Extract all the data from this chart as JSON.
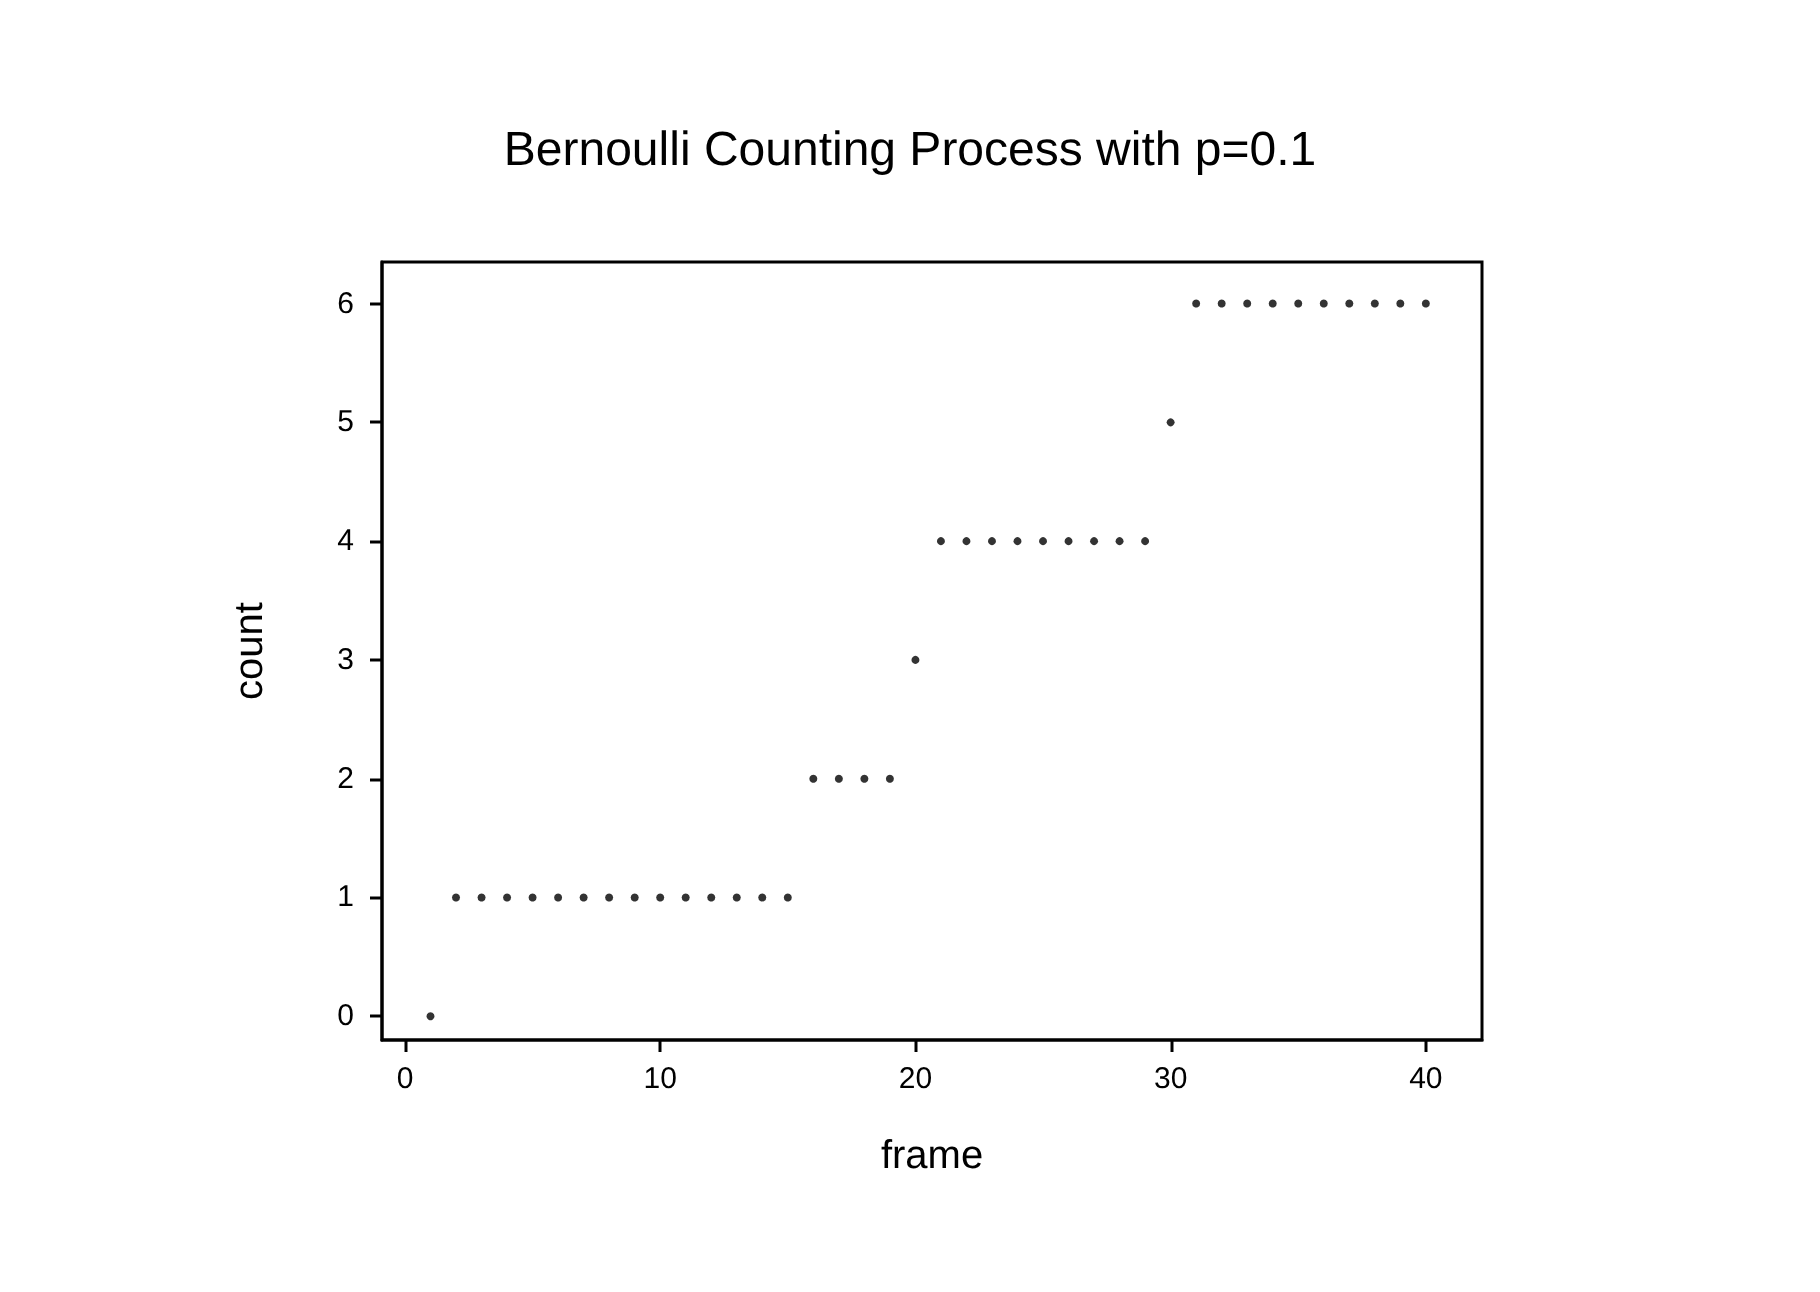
{
  "chart_data": {
    "type": "scatter",
    "title": "Bernoulli Counting Process with p=0.1",
    "xlabel": "frame",
    "ylabel": "count",
    "x": [
      1,
      2,
      3,
      4,
      5,
      6,
      7,
      8,
      9,
      10,
      11,
      12,
      13,
      14,
      15,
      16,
      17,
      18,
      19,
      20,
      21,
      22,
      23,
      24,
      25,
      26,
      27,
      28,
      29,
      30,
      31,
      32,
      33,
      34,
      35,
      36,
      37,
      38,
      39,
      40
    ],
    "values": [
      0,
      1,
      1,
      1,
      1,
      1,
      1,
      1,
      1,
      1,
      1,
      1,
      1,
      1,
      1,
      2,
      2,
      2,
      2,
      3,
      4,
      4,
      4,
      4,
      4,
      4,
      4,
      4,
      4,
      5,
      6,
      6,
      6,
      6,
      6,
      6,
      6,
      6,
      6,
      6
    ],
    "color": "#000000",
    "marker": "circle",
    "grid": false,
    "xlim": [
      -0.9,
      42.2
    ],
    "xticks": [
      0,
      10,
      20,
      30,
      40
    ],
    "ylim": [
      -0.2,
      6.35
    ],
    "yticks": [
      0,
      1,
      2,
      3,
      4,
      5,
      6
    ]
  }
}
